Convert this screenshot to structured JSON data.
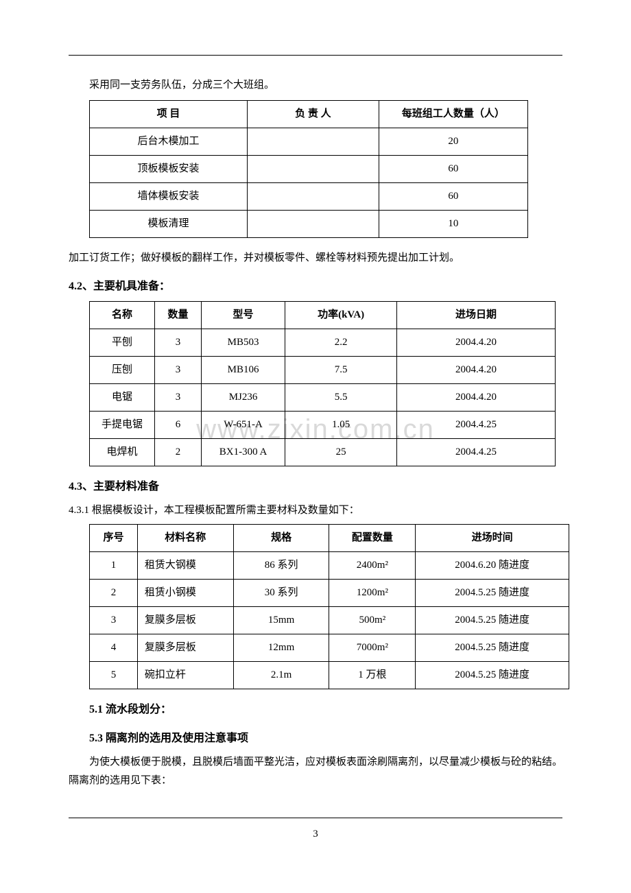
{
  "intro": "采用同一支劳务队伍，分成三个大班组。",
  "table1": {
    "headers": [
      "项 目",
      "负 责 人",
      "每班组工人数量（人）"
    ],
    "rows": [
      [
        "后台木模加工",
        "",
        "20"
      ],
      [
        "顶板模板安装",
        "",
        "60"
      ],
      [
        "墙体模板安装",
        "",
        "60"
      ],
      [
        "模板清理",
        "",
        "10"
      ]
    ],
    "col_widths": [
      "36%",
      "30%",
      "34%"
    ]
  },
  "para1": "加工订货工作；做好模板的翻样工作，并对模板零件、螺栓等材料预先提出加工计划。",
  "section42": "4.2、主要机具准备：",
  "table2": {
    "headers": [
      "名称",
      "数量",
      "型号",
      "功率(kVA)",
      "进场日期"
    ],
    "rows": [
      [
        "平刨",
        "3",
        "MB503",
        "2.2",
        "2004.4.20"
      ],
      [
        "压刨",
        "3",
        "MB106",
        "7.5",
        "2004.4.20"
      ],
      [
        "电锯",
        "3",
        "MJ236",
        "5.5",
        "2004.4.20"
      ],
      [
        "手提电锯",
        "6",
        "W-651-A",
        "1.05",
        "2004.4.25"
      ],
      [
        "电焊机",
        "2",
        "BX1-300 A",
        "25",
        "2004.4.25"
      ]
    ],
    "col_widths": [
      "14%",
      "10%",
      "18%",
      "24%",
      "34%"
    ]
  },
  "section43": "4.3、主要材料准备",
  "sub431": "4.3.1 根据模板设计，本工程模板配置所需主要材料及数量如下：",
  "table3": {
    "headers": [
      "序号",
      "材料名称",
      "规格",
      "配置数量",
      "进场时间"
    ],
    "rows": [
      [
        "1",
        "租赁大钢模",
        "86 系列",
        "2400m²",
        "2004.6.20 随进度"
      ],
      [
        "2",
        "租赁小钢模",
        "30 系列",
        "1200m²",
        "2004.5.25 随进度"
      ],
      [
        "3",
        "复膜多层板",
        "15mm",
        "500m²",
        "2004.5.25 随进度"
      ],
      [
        "4",
        "复膜多层板",
        "12mm",
        "7000m²",
        "2004.5.25 随进度"
      ],
      [
        "5",
        "碗扣立杆",
        "2.1m",
        "1 万根",
        "2004.5.25 随进度"
      ]
    ],
    "col_widths": [
      "10%",
      "20%",
      "20%",
      "18%",
      "32%"
    ],
    "left_cols": [
      1
    ]
  },
  "section51": "5.1 流水段划分：",
  "section53": "5.3 隔离剂的选用及使用注意事项",
  "para53": "为使大模板便于脱模，且脱模后墙面平整光洁，应对模板表面涂刷隔离剂，以尽量减少模板与砼的粘结。隔离剂的选用见下表：",
  "watermark": "www.zixin.com.cn",
  "page_number": "3"
}
